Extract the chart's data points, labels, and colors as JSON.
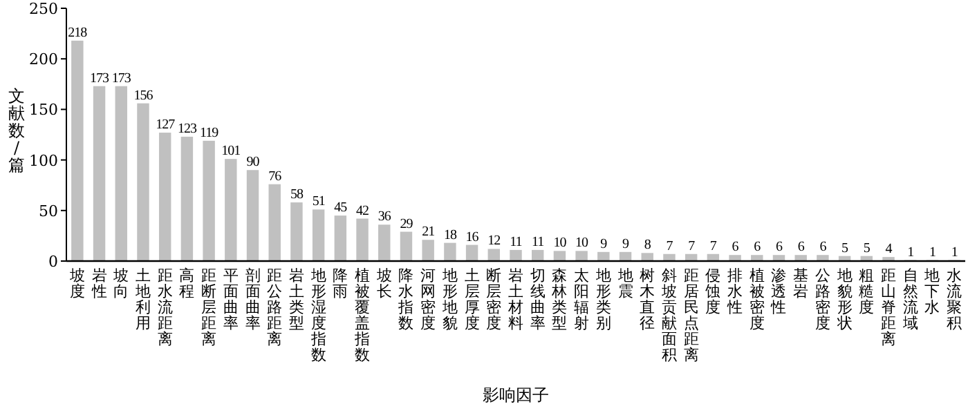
{
  "chart_data": {
    "type": "bar",
    "xlabel": "影响因子",
    "ylabel": "文献数/篇",
    "categories": [
      "坡度",
      "岩性",
      "坡向",
      "土地利用",
      "距水流距离",
      "高程",
      "距断层距离",
      "平面曲率",
      "剖面曲率",
      "距公路距离",
      "岩土类型",
      "地形湿度指数",
      "降雨",
      "植被覆盖指数",
      "坡长",
      "降水指数",
      "河网密度",
      "地形地貌",
      "土层厚度",
      "断层密度",
      "岩土材料",
      "切线曲率",
      "森林类型",
      "太阳辐射",
      "地形类别",
      "地震",
      "树木直径",
      "斜坡贡献面积",
      "距居民点距离",
      "侵蚀度",
      "排水性",
      "植被密度",
      "渗透性",
      "基岩",
      "公路密度",
      "地貌形状",
      "粗糙度",
      "距山脊距离",
      "自然流域",
      "地下水",
      "水流聚积"
    ],
    "values": [
      218,
      173,
      173,
      156,
      127,
      123,
      119,
      101,
      90,
      76,
      58,
      51,
      45,
      42,
      36,
      29,
      21,
      18,
      16,
      12,
      11,
      11,
      10,
      10,
      9,
      9,
      8,
      7,
      7,
      7,
      6,
      6,
      6,
      6,
      6,
      5,
      5,
      4,
      1,
      1,
      1
    ],
    "color": "#c0c0c0",
    "ylim": [
      0,
      250
    ],
    "yticks": [
      0,
      50,
      100,
      150,
      200,
      250
    ],
    "data_labels": true
  }
}
